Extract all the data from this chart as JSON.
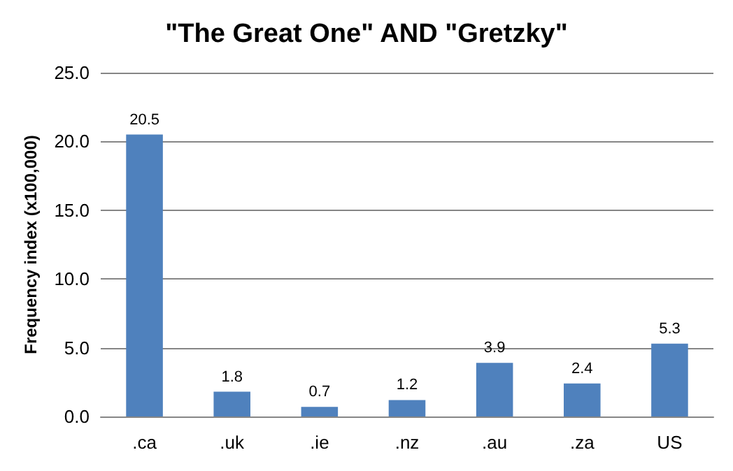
{
  "chart_data": {
    "type": "bar",
    "title": "\"The Great One\" AND \"Gretzky\"",
    "ylabel": "Frequency index (x100,000)",
    "categories": [
      ".ca",
      ".uk",
      ".ie",
      ".nz",
      ".au",
      ".za",
      "US"
    ],
    "values": [
      20.5,
      1.8,
      0.7,
      1.2,
      3.9,
      2.4,
      5.3
    ],
    "color": "#4f81bd",
    "ylim": [
      0,
      25
    ],
    "yticks": [
      {
        "value": 0,
        "label": "0.0"
      },
      {
        "value": 5,
        "label": "5.0"
      },
      {
        "value": 10,
        "label": "10.0"
      },
      {
        "value": 15,
        "label": "15.0"
      },
      {
        "value": 20,
        "label": "20.0"
      },
      {
        "value": 25,
        "label": "25.0"
      }
    ],
    "grid": "y",
    "data_labels": true
  }
}
